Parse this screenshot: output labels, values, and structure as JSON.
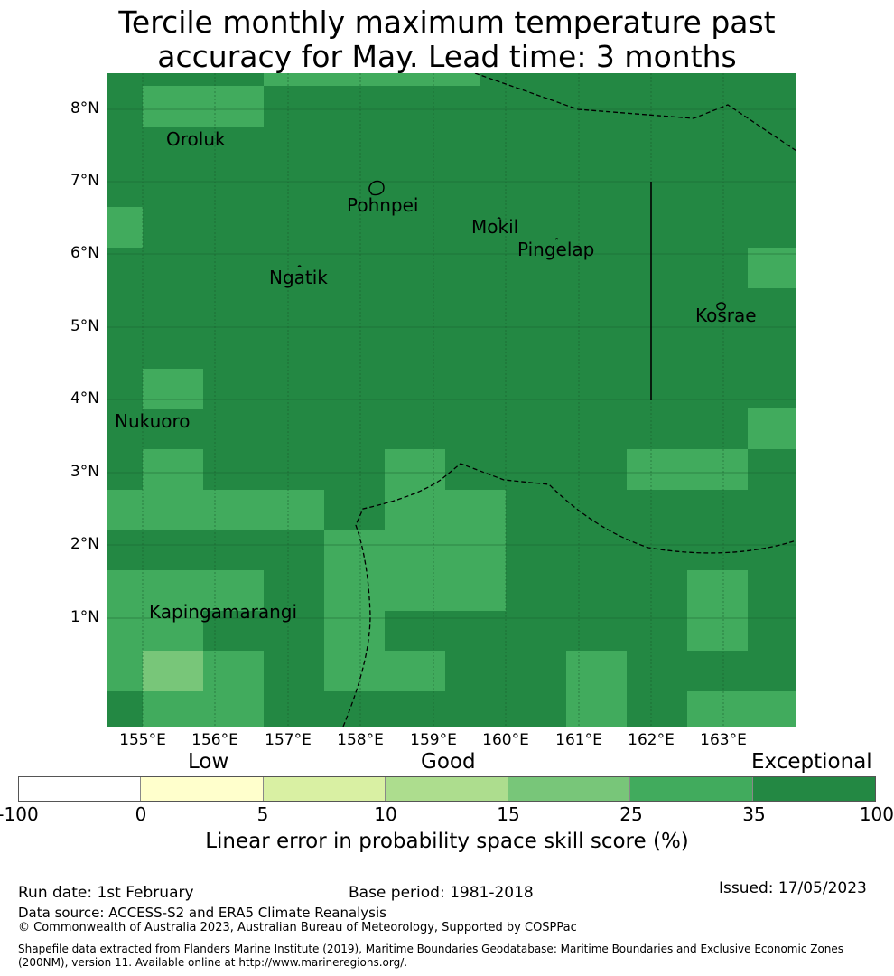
{
  "title_line1": "Tercile monthly maximum temperature past",
  "title_line2": "accuracy for May. Lead time: 3 months",
  "map": {
    "x_ticks": [
      "155°E",
      "156°E",
      "157°E",
      "158°E",
      "159°E",
      "160°E",
      "161°E",
      "162°E",
      "163°E"
    ],
    "y_ticks": [
      "8°N",
      "7°N",
      "6°N",
      "5°N",
      "4°N",
      "3°N",
      "2°N",
      "1°N"
    ],
    "places": [
      "Oroluk",
      "Pohnpei",
      "Mokil",
      "Pingelap",
      "Ngatik",
      "Kosrae",
      "Nukuoro",
      "Kapingamarangi"
    ],
    "colors": {
      "exceptional_dark": "#238843",
      "exceptional": "#41ab5d",
      "good_high": "#78c679",
      "good_low": "#addd8e",
      "low_high": "#d9f0a3",
      "low": "#ffffcc",
      "none": "#ffffff"
    }
  },
  "legend": {
    "categories": [
      "Low",
      "Good",
      "Exceptional"
    ],
    "ticks": [
      "-100",
      "0",
      "5",
      "10",
      "15",
      "25",
      "35",
      "100"
    ],
    "colors": [
      "#ffffff",
      "#ffffcc",
      "#d9f0a3",
      "#addd8e",
      "#78c679",
      "#41ab5d",
      "#238843"
    ],
    "title": "Linear error in probability space skill score (%)"
  },
  "footer": {
    "run_date": "Run date: 1st February",
    "base_period": "Base period: 1981-2018",
    "issued": "Issued: 17/05/2023",
    "data_source": "Data source: ACCESS-S2 and ERA5 Climate Reanalysis",
    "copyright": "© Commonwealth of Australia 2023, Australian Bureau of Meteorology, Supported by COSPPac",
    "shapefile_line1": "Shapefile data extracted from Flanders Marine Institute (2019), Maritime Boundaries Geodatabase: Maritime Boundaries and Exclusive Economic Zones",
    "shapefile_line2": "(200NM), version 11. Available online at http://www.marineregions.org/."
  }
}
